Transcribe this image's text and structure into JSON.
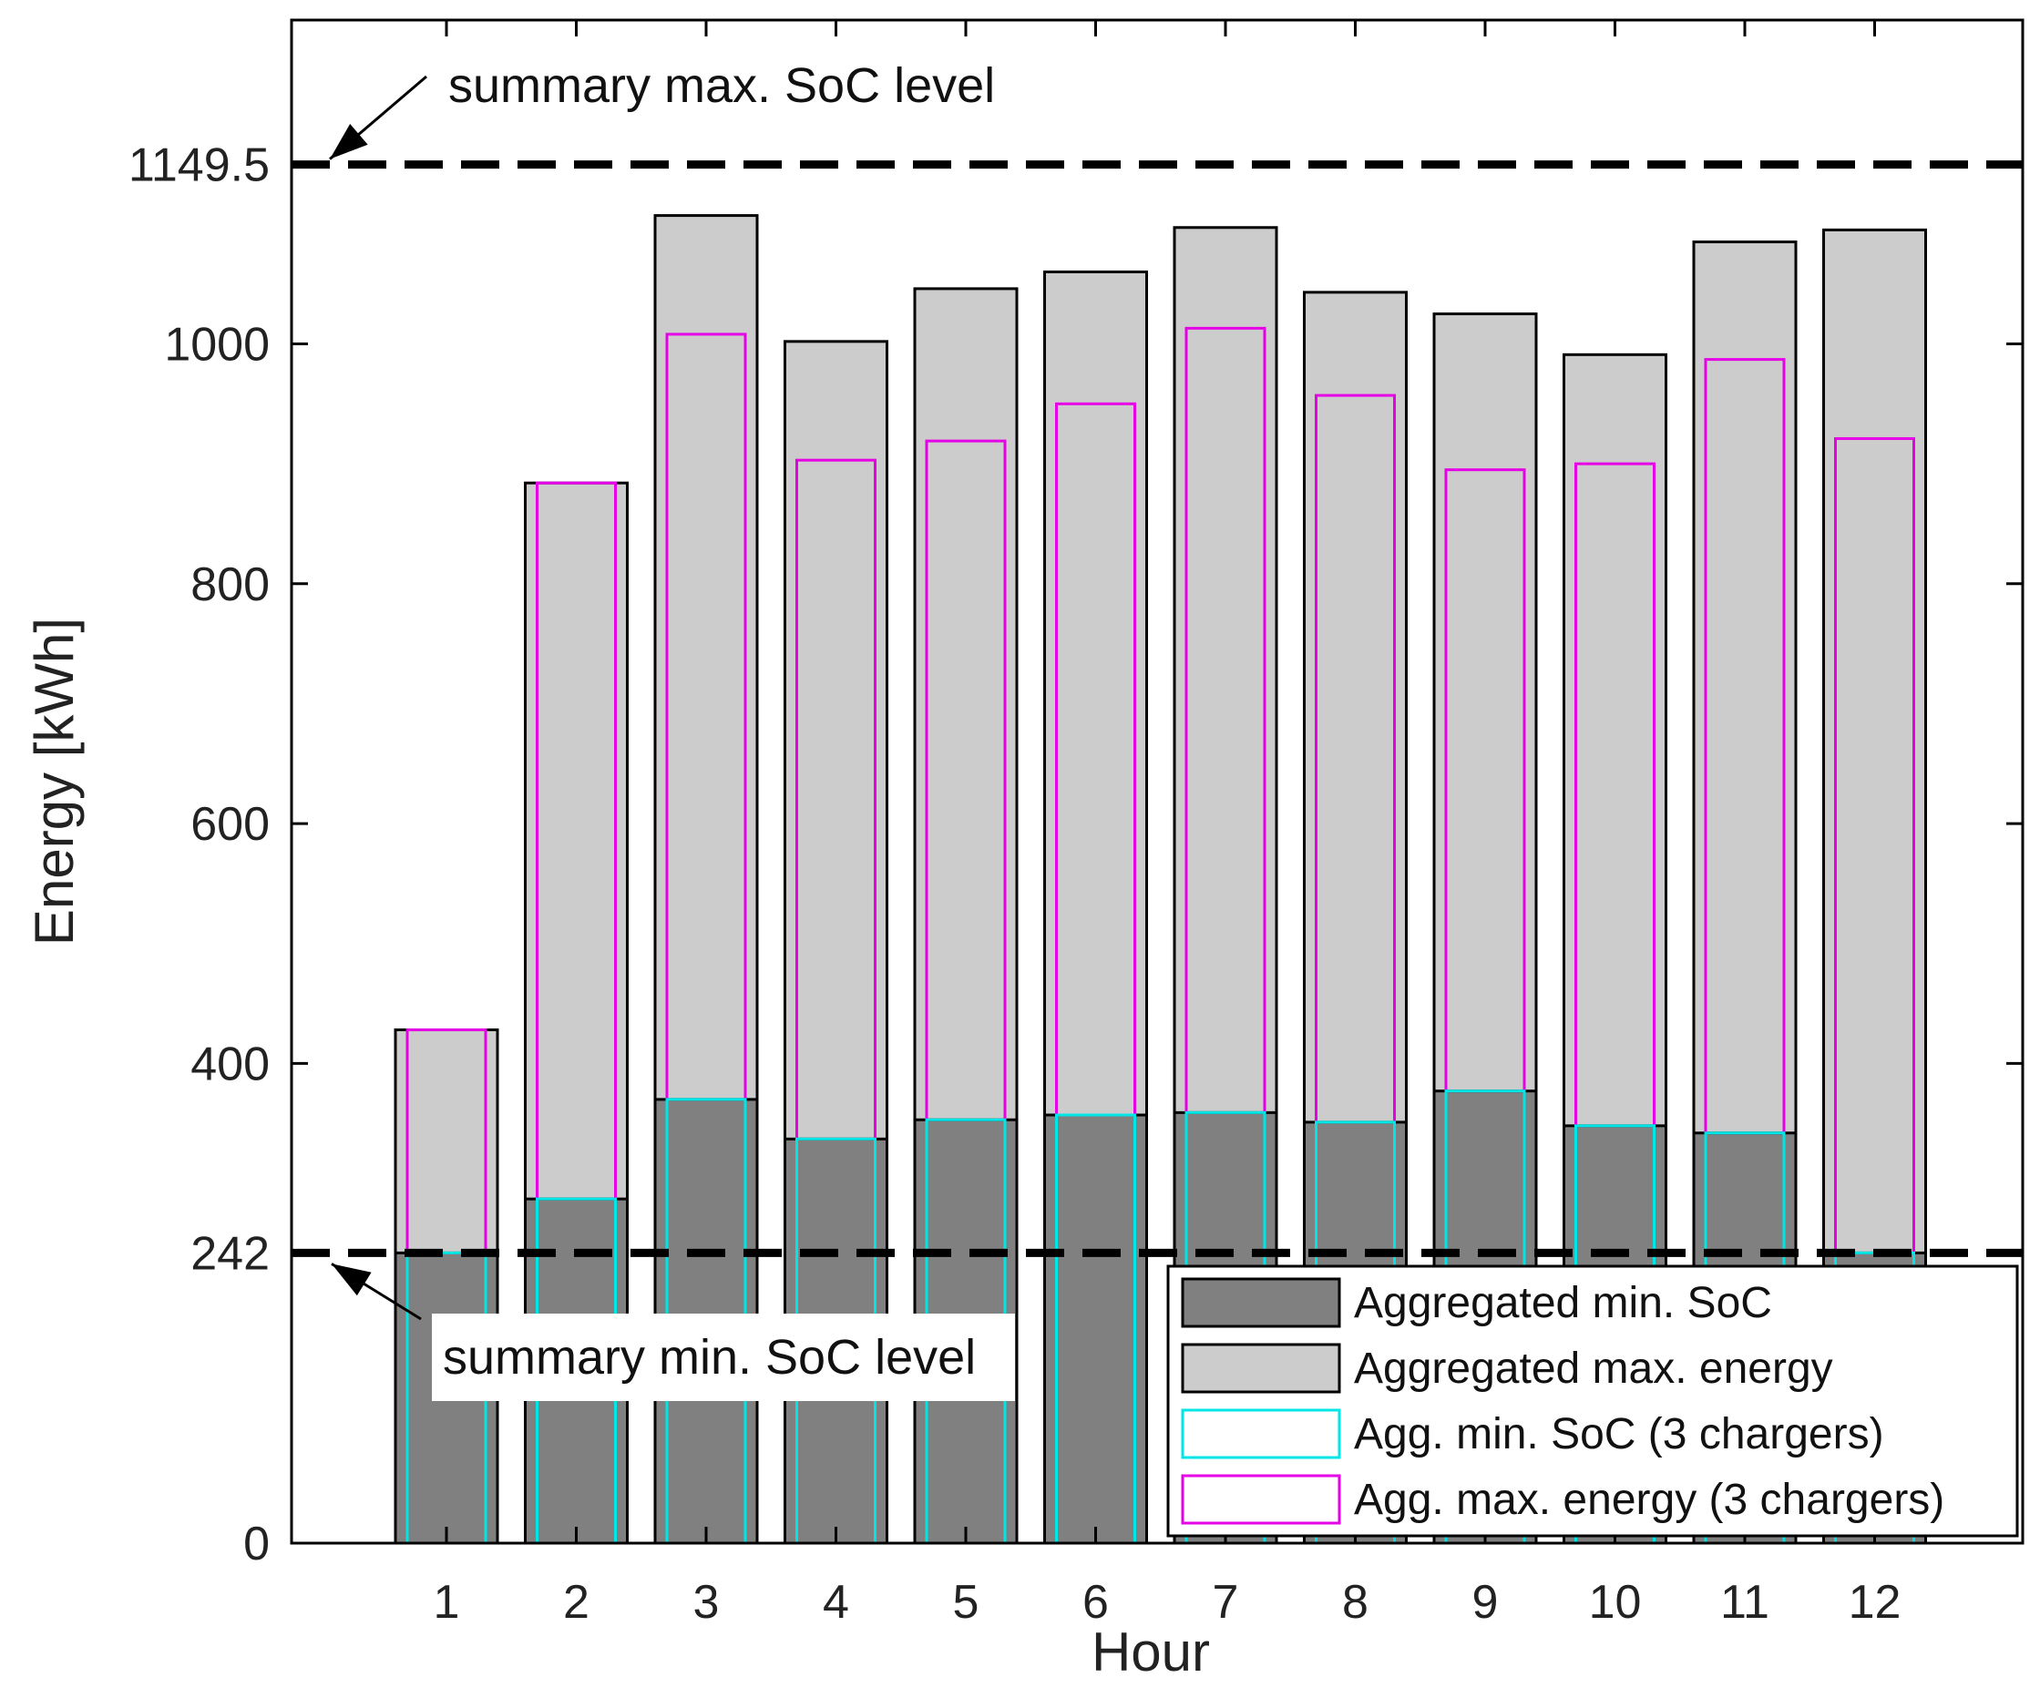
{
  "chart_data": {
    "type": "bar",
    "title": "",
    "xlabel": "Hour",
    "ylabel": "Energy [kWh]",
    "ylim": [
      0,
      1270
    ],
    "yticks": [
      0,
      242,
      400,
      600,
      800,
      1000,
      1149.5
    ],
    "ytick_labels": [
      "0",
      "242",
      "400",
      "600",
      "800",
      "1000",
      "1149.5"
    ],
    "categories": [
      "1",
      "2",
      "3",
      "4",
      "5",
      "6",
      "7",
      "8",
      "9",
      "10",
      "11",
      "12"
    ],
    "series": [
      {
        "name": "Aggregated min. SoC",
        "key": "min_soc",
        "values": [
          242,
          287,
          370,
          337,
          353,
          357,
          359,
          351,
          377,
          348,
          342,
          242
        ]
      },
      {
        "name": "Aggregated max. energy",
        "key": "max_energy",
        "values": [
          428,
          884,
          1107,
          1002,
          1046,
          1060,
          1097,
          1043,
          1025,
          991,
          1085,
          1095
        ]
      },
      {
        "name": "Agg. min. SoC (3 chargers)",
        "key": "min_soc_3",
        "values": [
          242,
          287,
          370,
          337,
          353,
          357,
          359,
          351,
          377,
          348,
          342,
          242
        ]
      },
      {
        "name": "Agg. max. energy (3 chargers)",
        "key": "max_energy_3",
        "values": [
          428,
          884,
          1008,
          903,
          919,
          950,
          1013,
          957,
          895,
          900,
          987,
          921
        ]
      }
    ],
    "reference_lines": [
      {
        "value": 1149.5,
        "label": "summary max. SoC level"
      },
      {
        "value": 242,
        "label": "summary min. SoC level"
      }
    ],
    "legend_position": "bottom-right",
    "grid": false,
    "colors": {
      "min_soc_fill": "#808080",
      "max_energy_fill": "#cccccc",
      "cyan": "#00e5e5",
      "magenta": "#e600e6",
      "edge": "#000000"
    }
  }
}
